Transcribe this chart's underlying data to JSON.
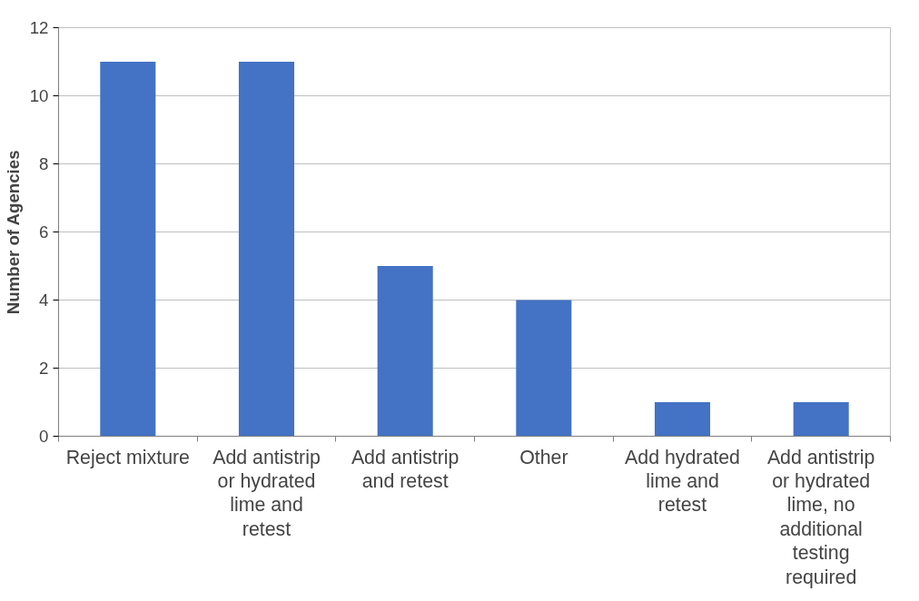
{
  "chart_data": {
    "type": "bar",
    "ylabel": "Number of Agencies",
    "categories": [
      "Reject mixture",
      "Add antistrip or hydrated lime and retest",
      "Add antistrip and retest",
      "Other",
      "Add hydrated lime and retest",
      "Add antistrip or hydrated lime, no additional testing required"
    ],
    "values": [
      11,
      11,
      5,
      4,
      1,
      1
    ],
    "color": "#4472c4",
    "ylim": [
      0,
      12
    ],
    "yticks": [
      0,
      2,
      4,
      6,
      8,
      10,
      12
    ],
    "grid": "y"
  }
}
